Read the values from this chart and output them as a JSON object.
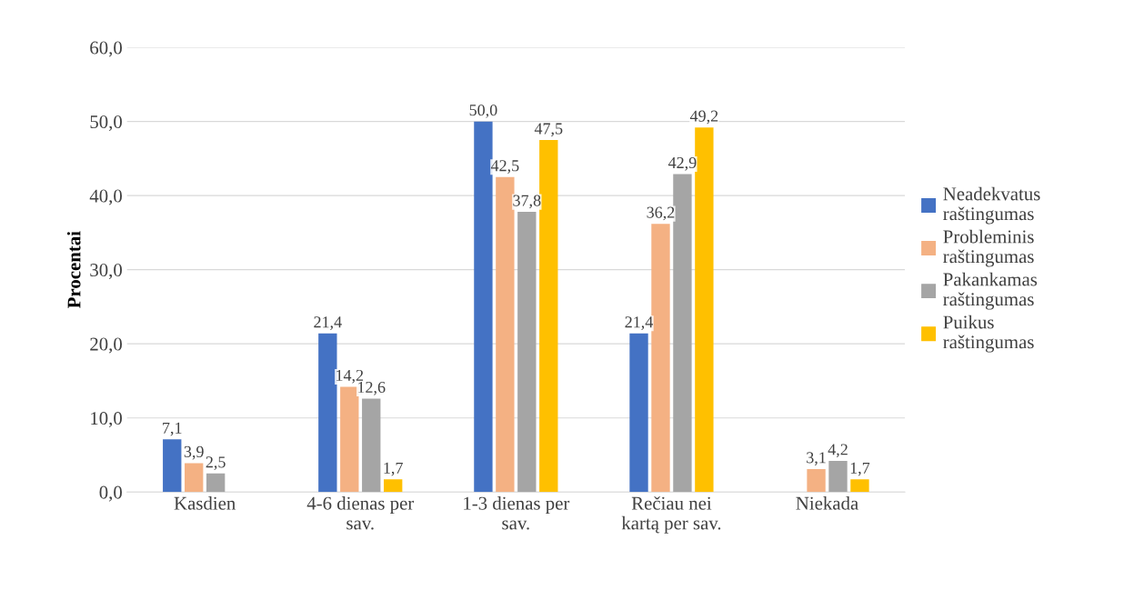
{
  "chart_data": {
    "type": "bar",
    "ylabel": "Procentai",
    "categories": [
      "Kasdien",
      "4-6 dienas per\nsav.",
      "1-3 dienas per\nsav.",
      "Rečiau nei\nkartą per sav.",
      "Niekada"
    ],
    "series": [
      {
        "name": "Neadekvatus\nraštingumas",
        "color": "#4472c4",
        "values": [
          7.1,
          21.4,
          50.0,
          21.4,
          null
        ],
        "value_labels": [
          "7,1",
          "21,4",
          "50,0",
          "21,4",
          null
        ]
      },
      {
        "name": "Probleminis\nraštingumas",
        "color": "#f4b183",
        "values": [
          3.9,
          14.2,
          42.5,
          36.2,
          3.1
        ],
        "value_labels": [
          "3,9",
          "14,2",
          "42,5",
          "36,2",
          "3,1"
        ]
      },
      {
        "name": "Pakankamas\nraštingumas",
        "color": "#a5a5a5",
        "values": [
          2.5,
          12.6,
          37.8,
          42.9,
          4.2
        ],
        "value_labels": [
          "2,5",
          "12,6",
          "37,8",
          "42,9",
          "4,2"
        ]
      },
      {
        "name": "Puikus\nraštingumas",
        "color": "#ffc000",
        "values": [
          null,
          1.7,
          47.5,
          49.2,
          1.7
        ],
        "value_labels": [
          null,
          "1,7",
          "47,5",
          "49,2",
          "1,7"
        ]
      }
    ],
    "ylim": [
      0,
      60
    ],
    "yticks": [
      {
        "value": 0,
        "label": "0,0"
      },
      {
        "value": 10,
        "label": "10,0"
      },
      {
        "value": 20,
        "label": "20,0"
      },
      {
        "value": 30,
        "label": "30,0"
      },
      {
        "value": 40,
        "label": "40,0"
      },
      {
        "value": 50,
        "label": "50,0"
      },
      {
        "value": 60,
        "label": "60,0"
      }
    ],
    "grid": "y",
    "legend": "right"
  }
}
